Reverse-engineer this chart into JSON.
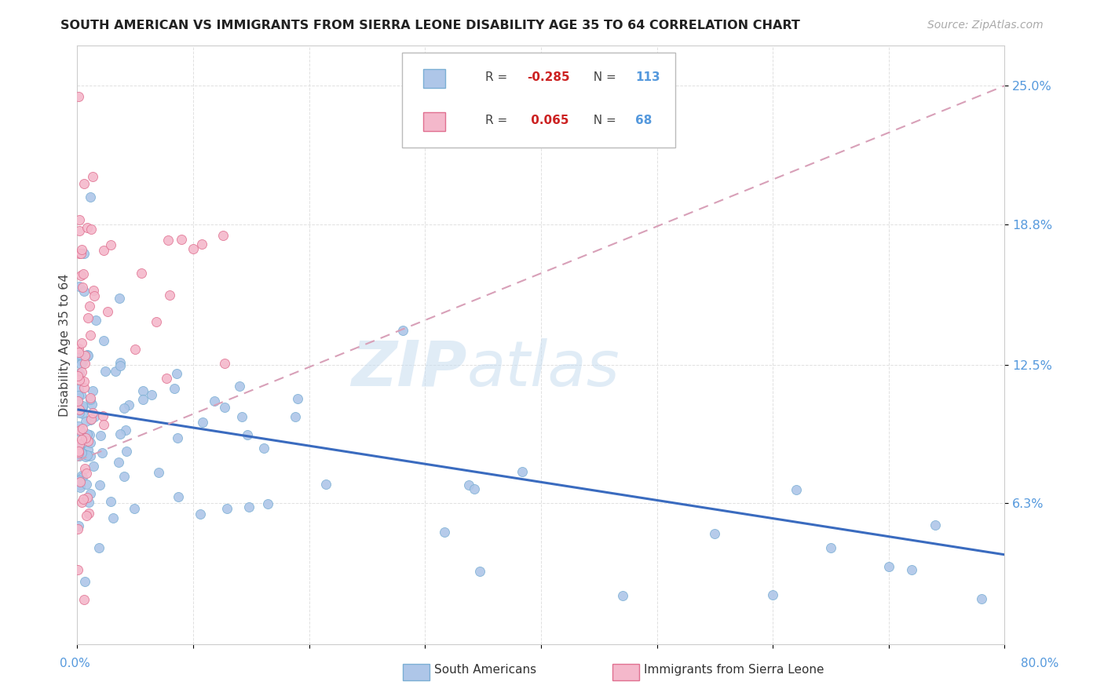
{
  "title": "SOUTH AMERICAN VS IMMIGRANTS FROM SIERRA LEONE DISABILITY AGE 35 TO 64 CORRELATION CHART",
  "source": "Source: ZipAtlas.com",
  "ylabel": "Disability Age 35 to 64",
  "ytick_labels": [
    "6.3%",
    "12.5%",
    "18.8%",
    "25.0%"
  ],
  "ytick_values": [
    0.063,
    0.125,
    0.188,
    0.25
  ],
  "xlim": [
    0.0,
    0.8
  ],
  "ylim": [
    0.0,
    0.268
  ],
  "watermark_zip": "ZIP",
  "watermark_atlas": "atlas",
  "sa_color": "#aec6e8",
  "sa_edge": "#7bafd4",
  "sl_color": "#f4b8cb",
  "sl_edge": "#e07090",
  "sa_trend_color": "#3a6bbf",
  "sl_trend_color": "#d8a0b8",
  "legend_r1": "-0.285",
  "legend_n1": "113",
  "legend_r2": "0.065",
  "legend_n2": "68"
}
